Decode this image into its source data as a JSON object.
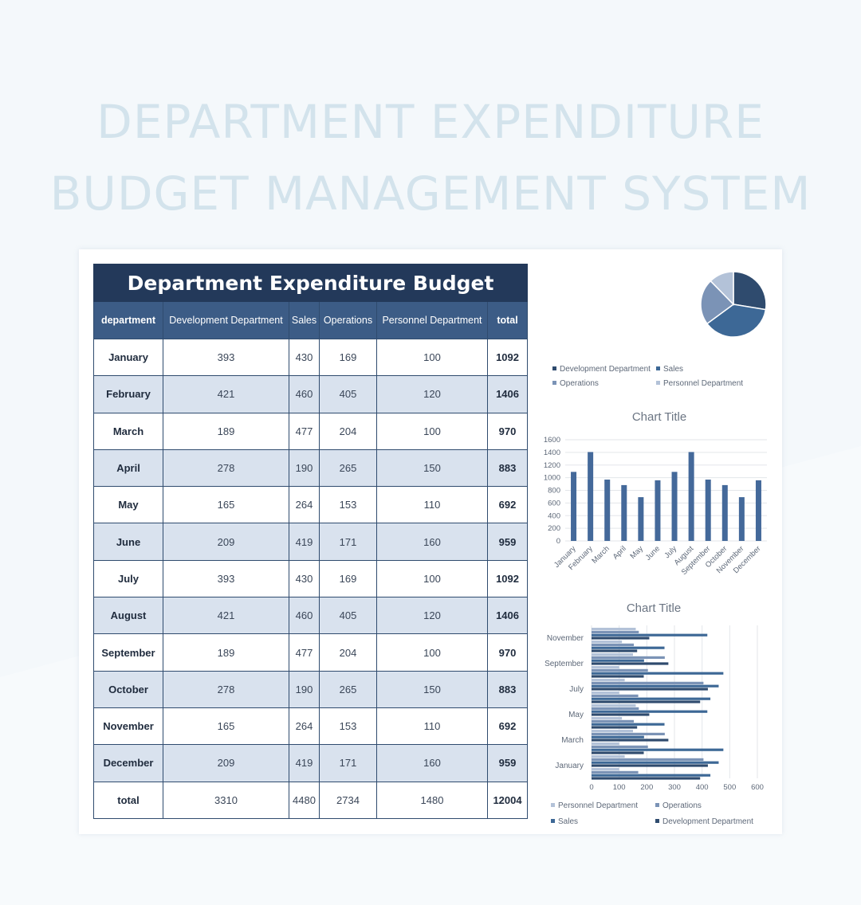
{
  "page": {
    "title_line1": "DEPARTMENT EXPENDITURE",
    "title_line2": "BUDGET MANAGEMENT SYSTEM"
  },
  "table": {
    "title": "Department Expenditure Budget",
    "columns": [
      "department",
      "Development Department",
      "Sales",
      "Operations",
      "Personnel Department",
      "total"
    ],
    "rows": [
      {
        "month": "January",
        "dev": "393",
        "sales": "430",
        "ops": "169",
        "personnel": "100",
        "total": "1092"
      },
      {
        "month": "February",
        "dev": "421",
        "sales": "460",
        "ops": "405",
        "personnel": "120",
        "total": "1406"
      },
      {
        "month": "March",
        "dev": "189",
        "sales": "477",
        "ops": "204",
        "personnel": "100",
        "total": "970"
      },
      {
        "month": "April",
        "dev": "278",
        "sales": "190",
        "ops": "265",
        "personnel": "150",
        "total": "883"
      },
      {
        "month": "May",
        "dev": "165",
        "sales": "264",
        "ops": "153",
        "personnel": "110",
        "total": "692"
      },
      {
        "month": "June",
        "dev": "209",
        "sales": "419",
        "ops": "171",
        "personnel": "160",
        "total": "959"
      },
      {
        "month": "July",
        "dev": "393",
        "sales": "430",
        "ops": "169",
        "personnel": "100",
        "total": "1092"
      },
      {
        "month": "August",
        "dev": "421",
        "sales": "460",
        "ops": "405",
        "personnel": "120",
        "total": "1406"
      },
      {
        "month": "September",
        "dev": "189",
        "sales": "477",
        "ops": "204",
        "personnel": "100",
        "total": "970"
      },
      {
        "month": "October",
        "dev": "278",
        "sales": "190",
        "ops": "265",
        "personnel": "150",
        "total": "883"
      },
      {
        "month": "November",
        "dev": "165",
        "sales": "264",
        "ops": "153",
        "personnel": "110",
        "total": "692"
      },
      {
        "month": "December",
        "dev": "209",
        "sales": "419",
        "ops": "171",
        "personnel": "160",
        "total": "959"
      }
    ],
    "totals": {
      "month": "total",
      "dev": "3310",
      "sales": "4480",
      "ops": "2734",
      "personnel": "1480",
      "total": "12004"
    }
  },
  "colors": {
    "dev": "#2f4b6e",
    "sales": "#3d6896",
    "ops": "#7b93b6",
    "personnel": "#b3c2d8",
    "column_bar": "#44699a"
  },
  "chart_data": [
    {
      "type": "pie",
      "title": "",
      "categories": [
        "Development Department",
        "Sales",
        "Operations",
        "Personnel Department"
      ],
      "values": [
        3310,
        4480,
        2734,
        1480
      ],
      "legend": "bottom"
    },
    {
      "type": "bar",
      "title": "Chart Title",
      "categories": [
        "January",
        "February",
        "March",
        "April",
        "May",
        "June",
        "July",
        "August",
        "September",
        "October",
        "November",
        "December"
      ],
      "values": [
        1092,
        1406,
        970,
        883,
        692,
        959,
        1092,
        1406,
        970,
        883,
        692,
        959
      ],
      "ylim": [
        0,
        1600
      ],
      "yticks": [
        0,
        200,
        400,
        600,
        800,
        1000,
        1200,
        1400,
        1600
      ],
      "grid": true
    },
    {
      "type": "bar",
      "orientation": "horizontal",
      "title": "Chart Title",
      "categories": [
        "January",
        "February",
        "March",
        "April",
        "May",
        "June",
        "July",
        "August",
        "September",
        "October",
        "November",
        "December"
      ],
      "shown_category_labels": [
        "January",
        "March",
        "May",
        "July",
        "September",
        "November"
      ],
      "series": [
        {
          "name": "Personnel Department",
          "values": [
            100,
            120,
            100,
            150,
            110,
            160,
            100,
            120,
            100,
            150,
            110,
            160
          ]
        },
        {
          "name": "Operations",
          "values": [
            169,
            405,
            204,
            265,
            153,
            171,
            169,
            405,
            204,
            265,
            153,
            171
          ]
        },
        {
          "name": "Sales",
          "values": [
            430,
            460,
            477,
            190,
            264,
            419,
            430,
            460,
            477,
            190,
            264,
            419
          ]
        },
        {
          "name": "Development Department",
          "values": [
            393,
            421,
            189,
            278,
            165,
            209,
            393,
            421,
            189,
            278,
            165,
            209
          ]
        }
      ],
      "xlim": [
        0,
        600
      ],
      "xticks": [
        0,
        100,
        200,
        300,
        400,
        500,
        600
      ],
      "grid": true,
      "legend": "bottom"
    }
  ]
}
